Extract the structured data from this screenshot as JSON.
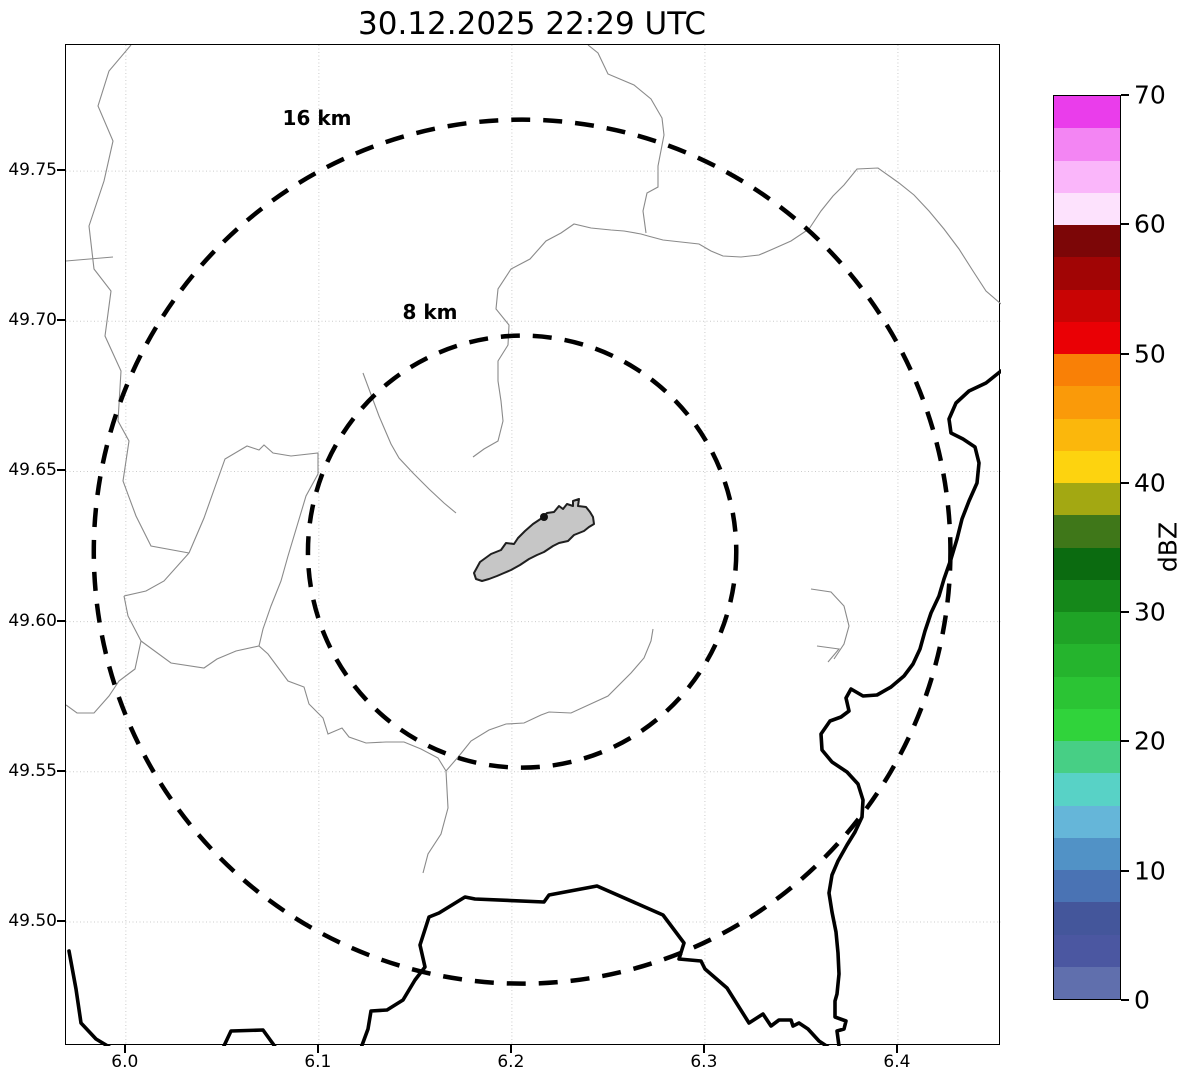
{
  "title": "30.12.2025 22:29 UTC",
  "rings": {
    "outer_label": "16 km",
    "inner_label": "8 km"
  },
  "axes": {
    "x_tick_labels": [
      "6.0",
      "6.1",
      "6.2",
      "6.3",
      "6.4"
    ],
    "x_tick_values": [
      6.0,
      6.1,
      6.2,
      6.3,
      6.4
    ],
    "y_tick_labels": [
      "49.75",
      "49.70",
      "49.65",
      "49.60",
      "49.55",
      "49.50"
    ],
    "y_tick_values": [
      49.75,
      49.7,
      49.65,
      49.6,
      49.55,
      49.5
    ],
    "xlim": [
      5.969,
      6.4534
    ],
    "ylim": [
      49.4587,
      49.792
    ]
  },
  "colorbar": {
    "label": "dBZ",
    "tick_labels": [
      "0",
      "10",
      "20",
      "30",
      "40",
      "50",
      "60",
      "70"
    ],
    "tick_values": [
      0,
      10,
      20,
      30,
      40,
      50,
      60,
      70
    ],
    "min": 0,
    "max": 70,
    "segment_step": 2.5,
    "colors_bottom_to_top": [
      "#606fad",
      "#4b57a1",
      "#44569b",
      "#4a73b4",
      "#5192c6",
      "#65b6d9",
      "#58d2c6",
      "#47cf85",
      "#30d33b",
      "#2bc434",
      "#25b42d",
      "#1fa326",
      "#15881a",
      "#0b6b10",
      "#3f7719",
      "#a3a812",
      "#fdd30f",
      "#fbb70c",
      "#fa9a09",
      "#f98006",
      "#ea0005",
      "#c90404",
      "#a10505",
      "#7c0607",
      "#fde2fd",
      "#fab6fa",
      "#f385f3",
      "#ea3deb"
    ]
  },
  "map_colors": {
    "boundary_gray": "#8a8a8a",
    "border_black": "#000000",
    "ring_black": "#000000",
    "grid_gray": "#cccccc",
    "airport_fill": "#c6c6c6",
    "airport_stroke": "#1f1f1f",
    "site_dot": "#111111"
  },
  "chart_data": {
    "type": "heatmap",
    "title": "30.12.2025 22:29 UTC",
    "xlabel": "",
    "ylabel": "",
    "x_ticks": [
      6.0,
      6.1,
      6.2,
      6.3,
      6.4
    ],
    "y_ticks": [
      49.5,
      49.55,
      49.6,
      49.65,
      49.7,
      49.75
    ],
    "xlim": [
      5.969,
      6.4534
    ],
    "ylim": [
      49.4587,
      49.792
    ],
    "grid": true,
    "colorbar_label": "dBZ",
    "colorbar_range": [
      0,
      70
    ],
    "colorbar_tick_step": 10,
    "colorbar_segment_step": 2.5,
    "range_rings": [
      {
        "radius_km": 8,
        "label": "8 km"
      },
      {
        "radius_km": 16,
        "label": "16 km"
      }
    ],
    "ring_center": {
      "lon": 6.2053,
      "lat": 49.6233
    },
    "reflectivity_echoes": "none visible (clear map, no precipitation shown)",
    "map_features": "airport outline polygon at center, municipal boundaries (thin gray), country borders (thick black)"
  }
}
